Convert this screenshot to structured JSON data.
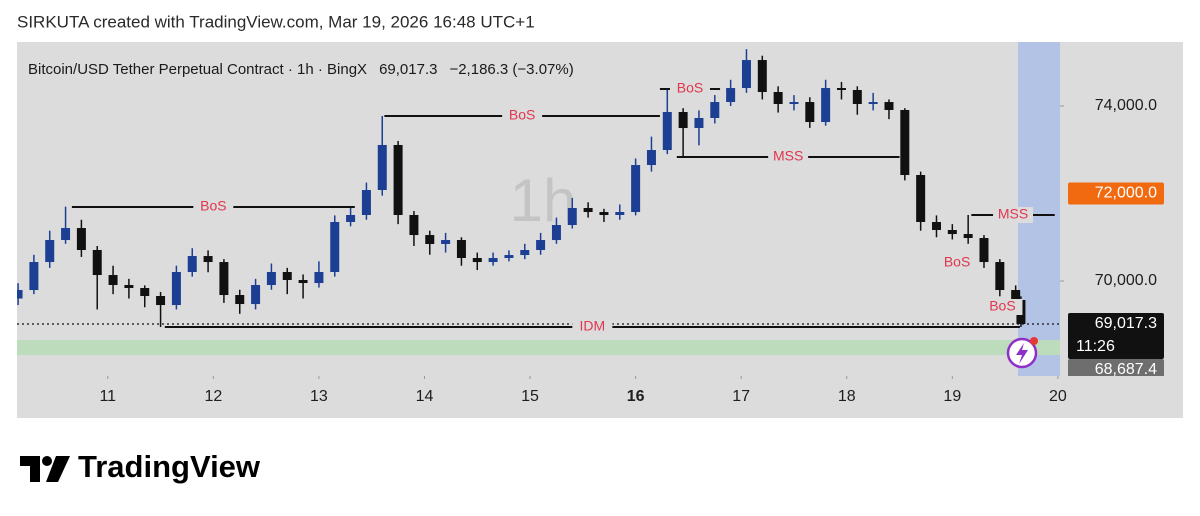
{
  "header": {
    "title": "SIRKUTA created with TradingView.com, Mar 19, 2026 16:48 UTC+1"
  },
  "chart_data": {
    "type": "candlestick",
    "symbol_line": "Bitcoin/USD Tether Perpetual Contract · 1h · BingX",
    "last": "69,017.3",
    "change": "−2,186.3 (−3.07%)",
    "watermark": "1h",
    "up_color": "#1c3f94",
    "down_color": "#111111",
    "x": [
      10.15,
      10.3,
      10.45,
      10.6,
      10.75,
      10.9,
      11.05,
      11.2,
      11.35,
      11.5,
      11.65,
      11.8,
      11.95,
      12.1,
      12.25,
      12.4,
      12.55,
      12.7,
      12.85,
      13.0,
      13.15,
      13.3,
      13.45,
      13.6,
      13.75,
      13.9,
      14.05,
      14.2,
      14.35,
      14.5,
      14.65,
      14.8,
      14.95,
      15.1,
      15.25,
      15.4,
      15.55,
      15.7,
      15.85,
      16.0,
      16.15,
      16.3,
      16.45,
      16.6,
      16.75,
      16.9,
      17.05,
      17.2,
      17.35,
      17.5,
      17.65,
      17.8,
      17.95,
      18.1,
      18.25,
      18.4,
      18.55,
      18.7,
      18.85,
      19.0,
      19.15,
      19.3,
      19.45,
      19.6,
      19.65
    ],
    "open": [
      69600,
      69794,
      70434,
      70937,
      71211,
      70709,
      70137,
      69909,
      69840,
      69657,
      69451,
      70206,
      70571,
      70434,
      69680,
      69474,
      69909,
      70206,
      70023,
      69954,
      70206,
      71349,
      71509,
      72080,
      73109,
      71509,
      71051,
      70846,
      70937,
      70526,
      70434,
      70526,
      70594,
      70709,
      70937,
      71280,
      71669,
      71577,
      71509,
      71577,
      72651,
      72994,
      73863,
      73497,
      73726,
      74091,
      74411,
      75051,
      74320,
      74046,
      74091,
      73634,
      74411,
      74366,
      74046,
      74091,
      73909,
      72423,
      71349,
      71166,
      71074,
      70983,
      70434,
      69794,
      69566
    ],
    "high": [
      69950,
      70600,
      71150,
      71700,
      71400,
      70800,
      70350,
      70050,
      69900,
      69750,
      70350,
      70750,
      70700,
      70500,
      69800,
      70050,
      70400,
      70300,
      70150,
      70450,
      71500,
      71700,
      72250,
      73771,
      73200,
      71600,
      71150,
      71100,
      71000,
      70650,
      70650,
      70700,
      70850,
      71100,
      71450,
      71900,
      71800,
      71650,
      71750,
      72800,
      73300,
      74389,
      73950,
      73900,
      74250,
      74600,
      75300,
      75150,
      74450,
      74250,
      74200,
      74600,
      74550,
      74450,
      74300,
      74150,
      73950,
      72500,
      71500,
      71300,
      71509,
      71050,
      70500,
      69900,
      69650
    ],
    "low": [
      69450,
      69700,
      70300,
      70850,
      70550,
      69350,
      69700,
      69600,
      69400,
      68949,
      69350,
      70100,
      70200,
      69500,
      69250,
      69350,
      69800,
      69700,
      69600,
      69850,
      70100,
      71250,
      71400,
      71950,
      71300,
      70800,
      70600,
      70650,
      70350,
      70250,
      70350,
      70450,
      70500,
      70600,
      70850,
      71200,
      71450,
      71350,
      71400,
      71500,
      72500,
      72900,
      72834,
      73100,
      73600,
      74000,
      74300,
      74150,
      73850,
      73900,
      73500,
      73550,
      74150,
      73800,
      73900,
      73700,
      72300,
      71150,
      71000,
      70950,
      70850,
      70300,
      69650,
      69406,
      68950
    ],
    "close": [
      69794,
      70434,
      70937,
      71211,
      70709,
      70137,
      69909,
      69840,
      69657,
      69451,
      70206,
      70571,
      70434,
      69680,
      69474,
      69909,
      70206,
      70023,
      69954,
      70206,
      71349,
      71509,
      72080,
      73109,
      71509,
      71051,
      70846,
      70937,
      70526,
      70434,
      70526,
      70594,
      70709,
      70937,
      71280,
      71669,
      71577,
      71509,
      71577,
      72651,
      72994,
      73863,
      73497,
      73726,
      74091,
      74411,
      75051,
      74320,
      74046,
      74091,
      73634,
      74411,
      74366,
      74046,
      74091,
      73909,
      72423,
      71349,
      71166,
      71074,
      70983,
      70434,
      69794,
      69566,
      69017.3
    ],
    "xlim": [
      10.14,
      20.02
    ],
    "xticks": [
      11,
      12,
      13,
      14,
      15,
      16,
      17,
      18,
      19,
      20
    ],
    "xtick_bold": 16,
    "ylim": [
      67829,
      75463
    ],
    "yticks": [
      {
        "value": 70000,
        "label": "70,000.0"
      },
      {
        "value": 74000,
        "label": "74,000.0"
      }
    ],
    "price_labels": [
      {
        "value": 72000,
        "label": "72,000.0",
        "color": "#f26a10"
      },
      {
        "value": 69017.3,
        "label": "69,017.3",
        "sublabel": "11:26",
        "color": "#111111"
      },
      {
        "value": 68687.4,
        "label": "68,687.4",
        "color": "#6e6e6e"
      }
    ],
    "zones": [
      {
        "from": 68309,
        "to": 68651,
        "color": "#bcdcbc"
      }
    ],
    "annotations": [
      {
        "label": "BoS",
        "price": 71691,
        "x": [
          10.66,
          13.34
        ]
      },
      {
        "label": "BoS",
        "price": 73771,
        "x": [
          13.62,
          16.23
        ]
      },
      {
        "label": "BoS",
        "price": 74389,
        "x": [
          16.23,
          16.8
        ]
      },
      {
        "label": "MSS",
        "price": 72834,
        "x": [
          16.39,
          18.5
        ]
      },
      {
        "label": "MSS",
        "price": 71509,
        "x": [
          19.18,
          19.97
        ]
      },
      {
        "label": "BoS",
        "price": 70411,
        "x": [
          18.88,
          19.21
        ]
      },
      {
        "label": "BoS",
        "price": 69406,
        "x": [
          19.31,
          19.64
        ]
      },
      {
        "label": "IDM",
        "price": 68949,
        "x": [
          11.54,
          19.64
        ]
      }
    ]
  },
  "footer": {
    "brand": "TradingView"
  }
}
